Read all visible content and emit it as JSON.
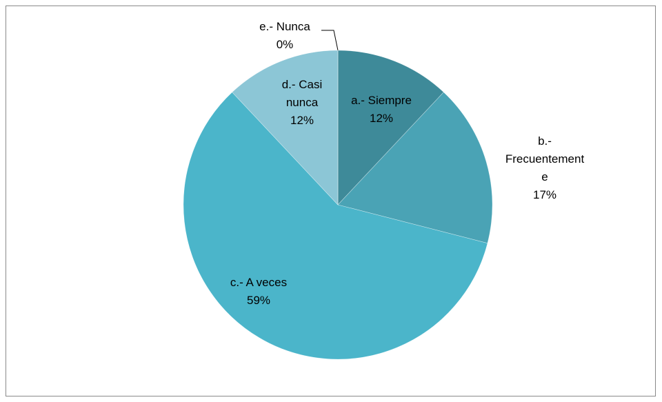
{
  "chart_data": {
    "type": "pie",
    "categories": [
      "a.- Siempre",
      "b.- Frecuentemente",
      "c.- A veces",
      "d.- Casi nunca",
      "e.- Nunca"
    ],
    "values": [
      12,
      17,
      59,
      12,
      0
    ],
    "value_labels": [
      "12%",
      "17%",
      "59%",
      "12%",
      "0%"
    ],
    "colors": [
      "#3e8a99",
      "#4aa3b5",
      "#4bb5ca",
      "#8cc6d6",
      "#6fb0c0"
    ]
  }
}
